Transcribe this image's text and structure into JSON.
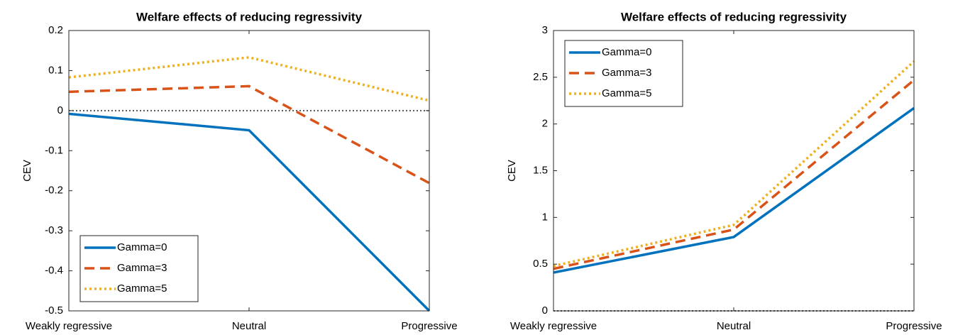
{
  "chart_data": [
    {
      "type": "line",
      "title": "Welfare effects of reducing regressivity",
      "y_label": "CEV",
      "categories": [
        "Weakly regressive",
        "Neutral",
        "Progressive"
      ],
      "series": [
        {
          "name": "Gamma=0",
          "color": "#0072BD",
          "line_style": "solid",
          "values": [
            -0.008,
            -0.049,
            -0.5
          ]
        },
        {
          "name": "Gamma=3",
          "color": "#D95319",
          "line_style": "dashed",
          "values": [
            0.047,
            0.061,
            -0.181
          ]
        },
        {
          "name": "Gamma=5",
          "color": "#EDB120",
          "line_style": "dotted",
          "values": [
            0.083,
            0.133,
            0.025
          ]
        }
      ],
      "reference_line": 0,
      "ylim": [
        -0.5,
        0.2
      ],
      "yticks": [
        -0.5,
        -0.4,
        -0.3,
        -0.2,
        -0.1,
        0,
        0.1,
        0.2
      ],
      "grid": false,
      "legend_position": "lower left"
    },
    {
      "type": "line",
      "title": "Welfare effects of reducing regressivity",
      "y_label": "CEV",
      "categories": [
        "Weakly regressive",
        "Neutral",
        "Progressive"
      ],
      "series": [
        {
          "name": "Gamma=0",
          "color": "#0072BD",
          "line_style": "solid",
          "values": [
            0.41,
            0.79,
            2.17
          ]
        },
        {
          "name": "Gamma=3",
          "color": "#D95319",
          "line_style": "dashed",
          "values": [
            0.45,
            0.87,
            2.47
          ]
        },
        {
          "name": "Gamma=5",
          "color": "#EDB120",
          "line_style": "dotted",
          "values": [
            0.48,
            0.92,
            2.67
          ]
        }
      ],
      "reference_line": 0,
      "ylim": [
        0,
        3
      ],
      "yticks": [
        0,
        0.5,
        1,
        1.5,
        2,
        2.5,
        3
      ],
      "grid": false,
      "legend_position": "upper left"
    }
  ]
}
